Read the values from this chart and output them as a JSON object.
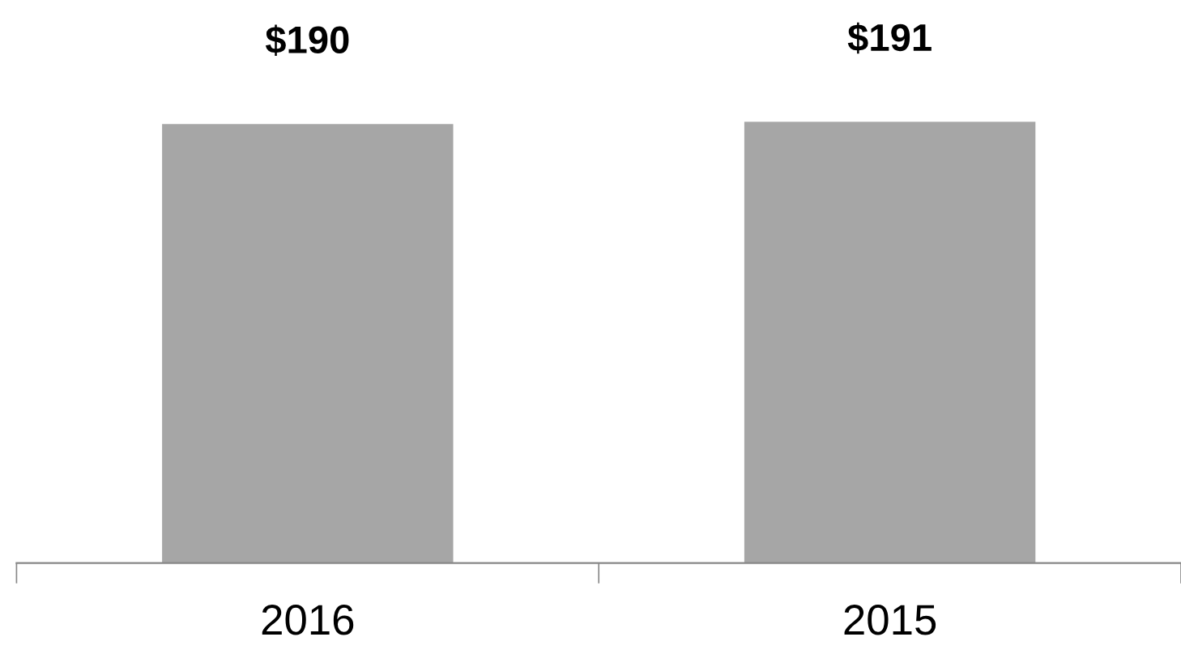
{
  "chart_data": {
    "type": "bar",
    "categories": [
      "2016",
      "2015"
    ],
    "values": [
      190,
      191
    ],
    "colors": [
      "#a6a6a6",
      "#a6a6a6"
    ],
    "value_labels": [
      "$190",
      "$191"
    ],
    "grid": false,
    "legend": false
  }
}
